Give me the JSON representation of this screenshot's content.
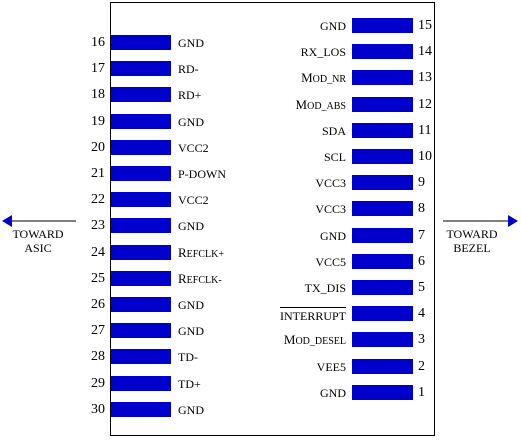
{
  "left_pins": [
    {
      "number": "16",
      "label": "GND"
    },
    {
      "number": "17",
      "label": "RD-"
    },
    {
      "number": "18",
      "label": "RD+"
    },
    {
      "number": "19",
      "label": "GND"
    },
    {
      "number": "20",
      "label": "VCC2"
    },
    {
      "number": "21",
      "label": "P-DOWN"
    },
    {
      "number": "22",
      "label": "VCC2"
    },
    {
      "number": "23",
      "label": "GND"
    },
    {
      "number": "24",
      "label": "REFCLK+"
    },
    {
      "number": "25",
      "label": "REFCLK-"
    },
    {
      "number": "26",
      "label": "GND"
    },
    {
      "number": "27",
      "label": "GND"
    },
    {
      "number": "28",
      "label": "TD-"
    },
    {
      "number": "29",
      "label": "TD+"
    },
    {
      "number": "30",
      "label": "GND"
    }
  ],
  "right_pins": [
    {
      "number": "15",
      "label": "GND"
    },
    {
      "number": "14",
      "label": "RX_LOS"
    },
    {
      "number": "13",
      "label": "MOD_NR"
    },
    {
      "number": "12",
      "label": "MOD_ABS"
    },
    {
      "number": "11",
      "label": "SDA"
    },
    {
      "number": "10",
      "label": "SCL"
    },
    {
      "number": "9",
      "label": "VCC3"
    },
    {
      "number": "8",
      "label": "VCC3"
    },
    {
      "number": "7",
      "label": "GND"
    },
    {
      "number": "6",
      "label": "VCC5"
    },
    {
      "number": "5",
      "label": "TX_DIS"
    },
    {
      "number": "4",
      "label": "INTERRUPT"
    },
    {
      "number": "3",
      "label": "MOD_DESEL"
    },
    {
      "number": "2",
      "label": "VEE5"
    },
    {
      "number": "1",
      "label": "GND"
    }
  ],
  "left_arrow": {
    "line1": "TOWARD",
    "line2": "ASIC"
  },
  "right_arrow": {
    "line1": "TOWARD",
    "line2": "BEZEL"
  },
  "colors": {
    "pin": "#0000cc",
    "arrow": "#0000cc",
    "outline": "#000000"
  }
}
